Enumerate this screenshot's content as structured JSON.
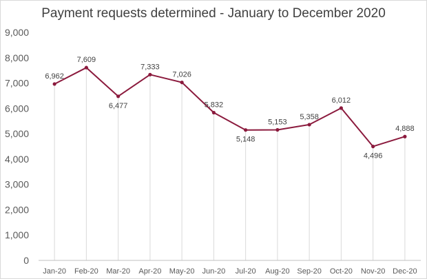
{
  "chart_data": {
    "type": "line",
    "title": "Payment requests determined - January to December 2020",
    "xlabel": "",
    "ylabel": "",
    "categories": [
      "Jan-20",
      "Feb-20",
      "Mar-20",
      "Apr-20",
      "May-20",
      "Jun-20",
      "Jul-20",
      "Aug-20",
      "Sep-20",
      "Oct-20",
      "Nov-20",
      "Dec-20"
    ],
    "values": [
      6962,
      7609,
      6477,
      7333,
      7026,
      5832,
      5148,
      5153,
      5358,
      6012,
      4496,
      4888
    ],
    "value_labels": [
      "6,962",
      "7,609",
      "6,477",
      "7,333",
      "7,026",
      "5,832",
      "5,148",
      "5,153",
      "5,358",
      "6,012",
      "4,496",
      "4,888"
    ],
    "yticks": [
      "0",
      "1,000",
      "2,000",
      "3,000",
      "4,000",
      "5,000",
      "6,000",
      "7,000",
      "8,000",
      "9,000"
    ],
    "ylim": [
      0,
      9000
    ],
    "grid": "vertical drop lines",
    "legend": "none",
    "line_color": "#8b1a3d",
    "dropline_color": "#d9d9d9"
  }
}
